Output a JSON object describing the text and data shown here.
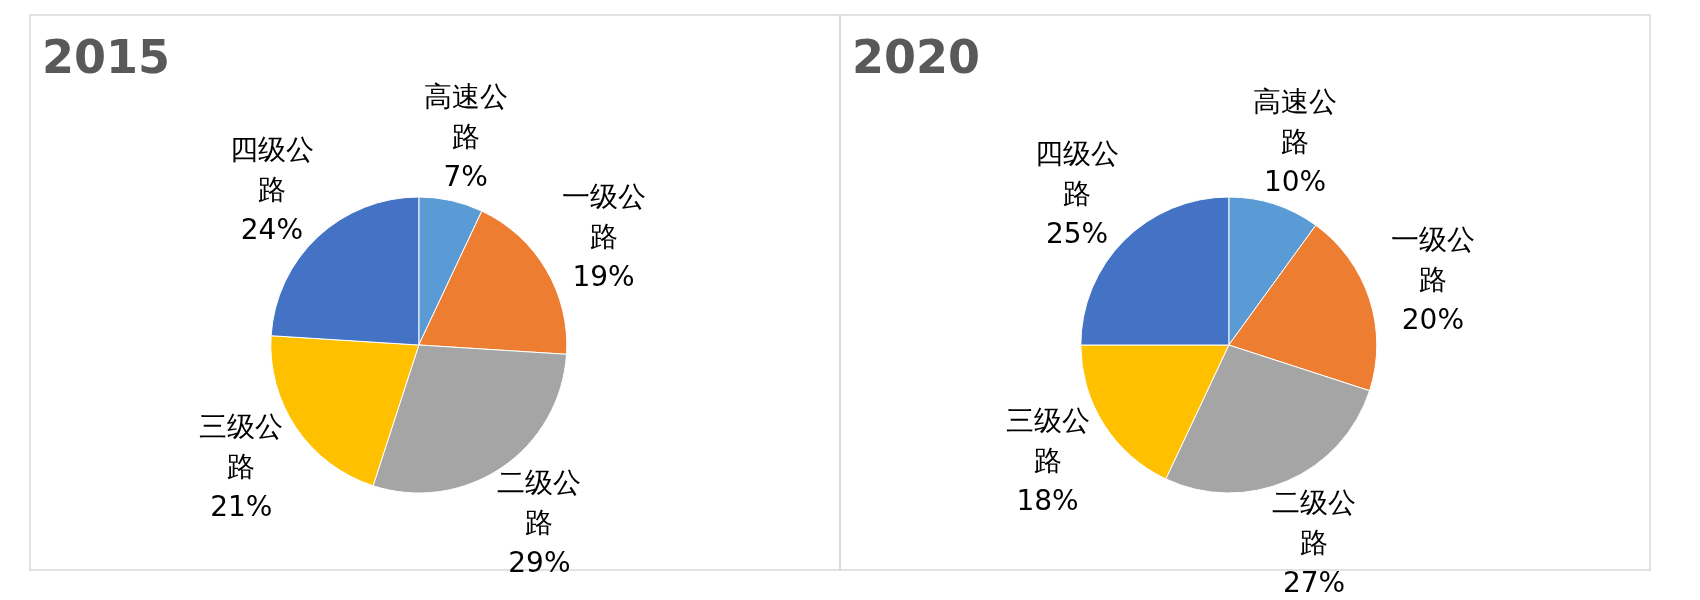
{
  "chart_data": [
    {
      "type": "pie",
      "title": "2015",
      "categories": [
        "高速公路",
        "一级公路",
        "二级公路",
        "三级公路",
        "四级公路"
      ],
      "values": [
        7,
        19,
        29,
        21,
        24
      ],
      "value_labels": [
        "7%",
        "19%",
        "29%",
        "21%",
        "24%"
      ],
      "colors": [
        "#5b9bd5",
        "#ed7d31",
        "#a5a5a5",
        "#ffc000",
        "#4472c4"
      ]
    },
    {
      "type": "pie",
      "title": "2020",
      "categories": [
        "高速公路",
        "一级公路",
        "二级公路",
        "三级公路",
        "四级公路"
      ],
      "values": [
        10,
        20,
        27,
        18,
        25
      ],
      "value_labels": [
        "10%",
        "20%",
        "27%",
        "18%",
        "25%"
      ],
      "colors": [
        "#5b9bd5",
        "#ed7d31",
        "#a5a5a5",
        "#ffc000",
        "#4472c4"
      ]
    }
  ]
}
